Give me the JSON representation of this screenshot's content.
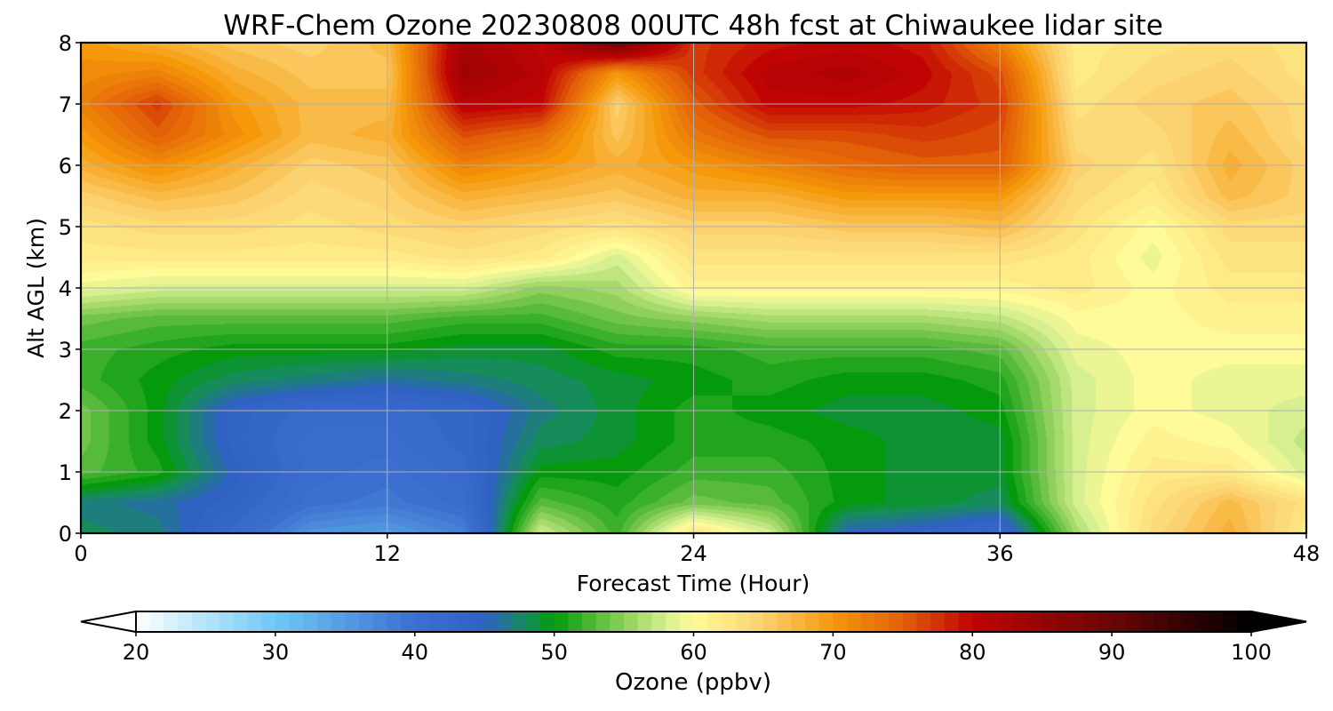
{
  "chart_data": {
    "type": "heatmap",
    "title": "WRF-Chem Ozone  20230808 00UTC 48h fcst at Chiwaukee lidar site",
    "xlabel": "Forecast Time (Hour)",
    "ylabel": "Alt AGL (km)",
    "xlim": [
      0,
      48
    ],
    "ylim": [
      0,
      8
    ],
    "x_ticks": [
      "0",
      "12",
      "24",
      "36",
      "48"
    ],
    "y_ticks": [
      "0",
      "1",
      "2",
      "3",
      "4",
      "5",
      "6",
      "7",
      "8"
    ],
    "grid": true,
    "x": [
      0,
      3,
      6,
      9,
      12,
      15,
      18,
      21,
      24,
      27,
      30,
      33,
      36,
      39,
      42,
      45,
      48
    ],
    "y": [
      0,
      0.5,
      1,
      1.5,
      2,
      2.5,
      3,
      3.5,
      4,
      4.5,
      5,
      5.5,
      6,
      6.5,
      7,
      7.5,
      8
    ],
    "z": [
      [
        48,
        47,
        42,
        36,
        35,
        38,
        58,
        52,
        63,
        58,
        45,
        44,
        42,
        56,
        64,
        68,
        62
      ],
      [
        47,
        46,
        44,
        40,
        39,
        41,
        53,
        51,
        54,
        53,
        50,
        49,
        48,
        58,
        63,
        67,
        63
      ],
      [
        53,
        51,
        45,
        41,
        40,
        42,
        50,
        50,
        52,
        52,
        50,
        49,
        49,
        58,
        62,
        62,
        58
      ],
      [
        54,
        50,
        44,
        41,
        41,
        43,
        48,
        49,
        51,
        51,
        50,
        49,
        49,
        58,
        61,
        60,
        57
      ],
      [
        54,
        50,
        44,
        42,
        42,
        43,
        47,
        49,
        51,
        50,
        49,
        49,
        50,
        58,
        60,
        59,
        58
      ],
      [
        52,
        50,
        48,
        47,
        46,
        47,
        48,
        49,
        50,
        51,
        50,
        50,
        51,
        58,
        60,
        59,
        59
      ],
      [
        52,
        51,
        50,
        50,
        50,
        49,
        49,
        51,
        51,
        52,
        52,
        52,
        53,
        59,
        60,
        60,
        60
      ],
      [
        54,
        53,
        53,
        53,
        53,
        52,
        52,
        54,
        55,
        56,
        56,
        56,
        57,
        60,
        60,
        61,
        61
      ],
      [
        59,
        58,
        58,
        58,
        58,
        58,
        55,
        56,
        61,
        61,
        61,
        61,
        61,
        62,
        60,
        62,
        62
      ],
      [
        62,
        62,
        62,
        62,
        62,
        63,
        62,
        58,
        63,
        63,
        63,
        63,
        63,
        62,
        59,
        63,
        63
      ],
      [
        63,
        64,
        64,
        63,
        64,
        65,
        64,
        63,
        65,
        65,
        66,
        66,
        67,
        63,
        60,
        64,
        64
      ],
      [
        65,
        67,
        66,
        64,
        65,
        68,
        67,
        66,
        68,
        68,
        70,
        70,
        70,
        64,
        62,
        67,
        65
      ],
      [
        68,
        71,
        68,
        65,
        66,
        72,
        70,
        68,
        70,
        72,
        74,
        75,
        75,
        65,
        63,
        68,
        65
      ],
      [
        70,
        75,
        71,
        67,
        68,
        76,
        74,
        66,
        73,
        76,
        76,
        77,
        76,
        64,
        64,
        67,
        64
      ],
      [
        72,
        77,
        70,
        67,
        67,
        81,
        80,
        65,
        75,
        80,
        80,
        79,
        77,
        63,
        65,
        66,
        64
      ],
      [
        71,
        72,
        68,
        66,
        66,
        84,
        81,
        70,
        77,
        81,
        82,
        80,
        76,
        62,
        64,
        65,
        63
      ],
      [
        70,
        68,
        66,
        65,
        67,
        83,
        80,
        90,
        77,
        79,
        80,
        79,
        72,
        62,
        63,
        64,
        63
      ]
    ],
    "colorbar": {
      "label": "Ozone  (ppbv)",
      "min": 20,
      "max": 100,
      "ticks": [
        "20",
        "30",
        "40",
        "50",
        "60",
        "70",
        "80",
        "90",
        "100"
      ],
      "extend": "both",
      "colormap_stops": [
        {
          "v": 20,
          "color": "#ffffff"
        },
        {
          "v": 30,
          "color": "#6ec8f5"
        },
        {
          "v": 40,
          "color": "#3c6fd0"
        },
        {
          "v": 45,
          "color": "#2f62c3"
        },
        {
          "v": 48,
          "color": "#158c5a"
        },
        {
          "v": 50,
          "color": "#049a0c"
        },
        {
          "v": 55,
          "color": "#8ed05a"
        },
        {
          "v": 58,
          "color": "#d6ef90"
        },
        {
          "v": 60,
          "color": "#fffb98"
        },
        {
          "v": 65,
          "color": "#fcd270"
        },
        {
          "v": 70,
          "color": "#f5980a"
        },
        {
          "v": 75,
          "color": "#e26008"
        },
        {
          "v": 80,
          "color": "#c00303"
        },
        {
          "v": 90,
          "color": "#6a0505"
        },
        {
          "v": 100,
          "color": "#000000"
        }
      ]
    }
  }
}
